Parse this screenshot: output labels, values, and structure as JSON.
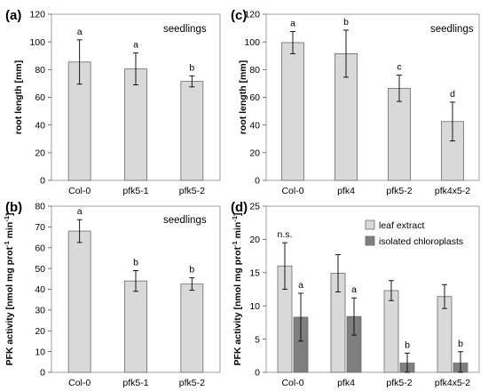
{
  "colors": {
    "light_bar": "#d9d9d9",
    "dark_bar": "#7f7f7f",
    "edge": "#6a6a6a"
  },
  "chart_data": [
    {
      "panel": "(a)",
      "type": "bar",
      "annotation": "seedlings",
      "ylabel": "root length [mm]",
      "ylabel_sup": "",
      "ylim": [
        0,
        120
      ],
      "yticks": [
        0,
        20,
        40,
        60,
        80,
        100,
        120
      ],
      "categories": [
        "Col-0",
        "pfk5-1",
        "pfk5-2"
      ],
      "series": [
        {
          "values": [
            85.5,
            80.5,
            71.5
          ],
          "errors": [
            16,
            11.5,
            4
          ],
          "labels": [
            "a",
            "a",
            "b"
          ]
        }
      ]
    },
    {
      "panel": "(b)",
      "type": "bar",
      "annotation": "seedlings",
      "ylabel": "PFK activity [nmol mg prot",
      "ylabel_sup": "-1",
      "ylabel_mid": " min",
      "ylabel_sup2": "-1",
      "ylabel_end": "]",
      "ylim": [
        0,
        80
      ],
      "yticks": [
        0,
        10,
        20,
        30,
        40,
        50,
        60,
        70,
        80
      ],
      "categories": [
        "Col-0",
        "pfk5-1",
        "pfk5-2"
      ],
      "series": [
        {
          "values": [
            68,
            44,
            42.5
          ],
          "errors": [
            5.5,
            5,
            3
          ],
          "labels": [
            "a",
            "b",
            "b"
          ]
        }
      ]
    },
    {
      "panel": "(c)",
      "type": "bar",
      "annotation": "seedlings",
      "ylabel": "root length [mm]",
      "ylabel_sup": "",
      "ylim": [
        0,
        120
      ],
      "yticks": [
        0,
        20,
        40,
        60,
        80,
        100,
        120
      ],
      "categories": [
        "Col-0",
        "pfk4",
        "pfk5-2",
        "pfk4x5-2"
      ],
      "series": [
        {
          "values": [
            99.5,
            91.5,
            66.5,
            42.5
          ],
          "errors": [
            8,
            17,
            9.5,
            14
          ],
          "labels": [
            "a",
            "b",
            "c",
            "d"
          ]
        }
      ]
    },
    {
      "panel": "(d)",
      "type": "bar",
      "annotation": "",
      "ylabel": "PFK activity [nmol mg prot",
      "ylabel_sup": "-1",
      "ylabel_mid": " min",
      "ylabel_sup2": "-1",
      "ylabel_end": "]",
      "ylim": [
        0,
        25
      ],
      "yticks": [
        0,
        5,
        10,
        15,
        20,
        25
      ],
      "categories": [
        "Col-0",
        "pfk4",
        "pfk5-2",
        "pfk4x5-2"
      ],
      "legend_position": "top-right",
      "series": [
        {
          "name": "leaf extract",
          "values": [
            16,
            14.9,
            12.3,
            11.4
          ],
          "errors": [
            3.5,
            2.8,
            1.5,
            1.8
          ],
          "labels": [
            "n.s.",
            "",
            "",
            ""
          ]
        },
        {
          "name": "isolated chloroplasts",
          "values": [
            8.3,
            8.4,
            1.4,
            1.4
          ],
          "errors": [
            3.6,
            2.8,
            1.5,
            1.7
          ],
          "labels": [
            "a",
            "a",
            "b",
            "b"
          ]
        }
      ]
    }
  ]
}
